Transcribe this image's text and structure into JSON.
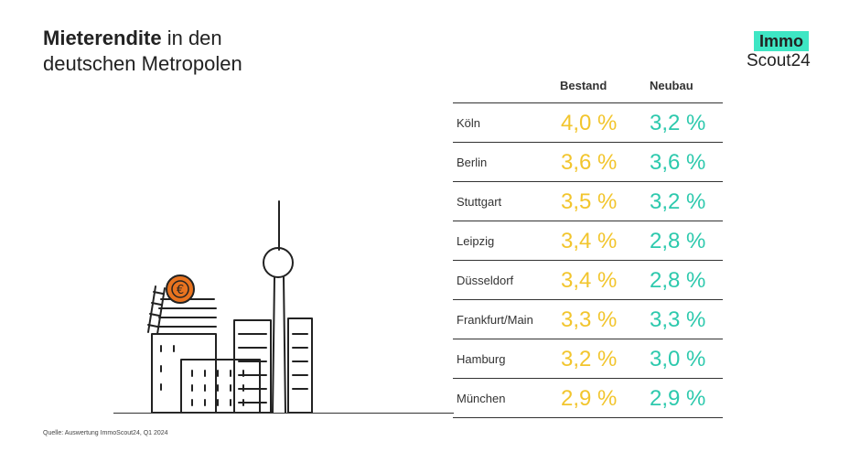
{
  "title": {
    "bold": "Mieterendite",
    "rest_line1": " in den",
    "line2": "deutschen Metropolen"
  },
  "logo": {
    "top": "Immo",
    "bottom": "Scout24"
  },
  "columns": {
    "bestand": "Bestand",
    "neubau": "Neubau"
  },
  "colors": {
    "bestand": "#f2c52d",
    "neubau": "#2dc9ad",
    "accent_coin": "#e8731f"
  },
  "chart_data": {
    "type": "table",
    "title": "Mieterendite in den deutschen Metropolen",
    "columns": [
      "Bestand",
      "Neubau"
    ],
    "rows": [
      {
        "city": "Köln",
        "bestand": "4,0 %",
        "neubau": "3,2 %"
      },
      {
        "city": "Berlin",
        "bestand": "3,6 %",
        "neubau": "3,6 %"
      },
      {
        "city": "Stuttgart",
        "bestand": "3,5 %",
        "neubau": "3,2 %"
      },
      {
        "city": "Leipzig",
        "bestand": "3,4 %",
        "neubau": "2,8 %"
      },
      {
        "city": "Düsseldorf",
        "bestand": "3,4 %",
        "neubau": "2,8 %"
      },
      {
        "city": "Frankfurt/Main",
        "bestand": "3,3 %",
        "neubau": "3,3 %"
      },
      {
        "city": "Hamburg",
        "bestand": "3,2 %",
        "neubau": "3,0 %"
      },
      {
        "city": "München",
        "bestand": "2,9 %",
        "neubau": "2,9 %"
      }
    ]
  },
  "illustration": {
    "coin_symbol": "€"
  },
  "source": "Quelle: Auswertung ImmoScout24, Q1 2024"
}
